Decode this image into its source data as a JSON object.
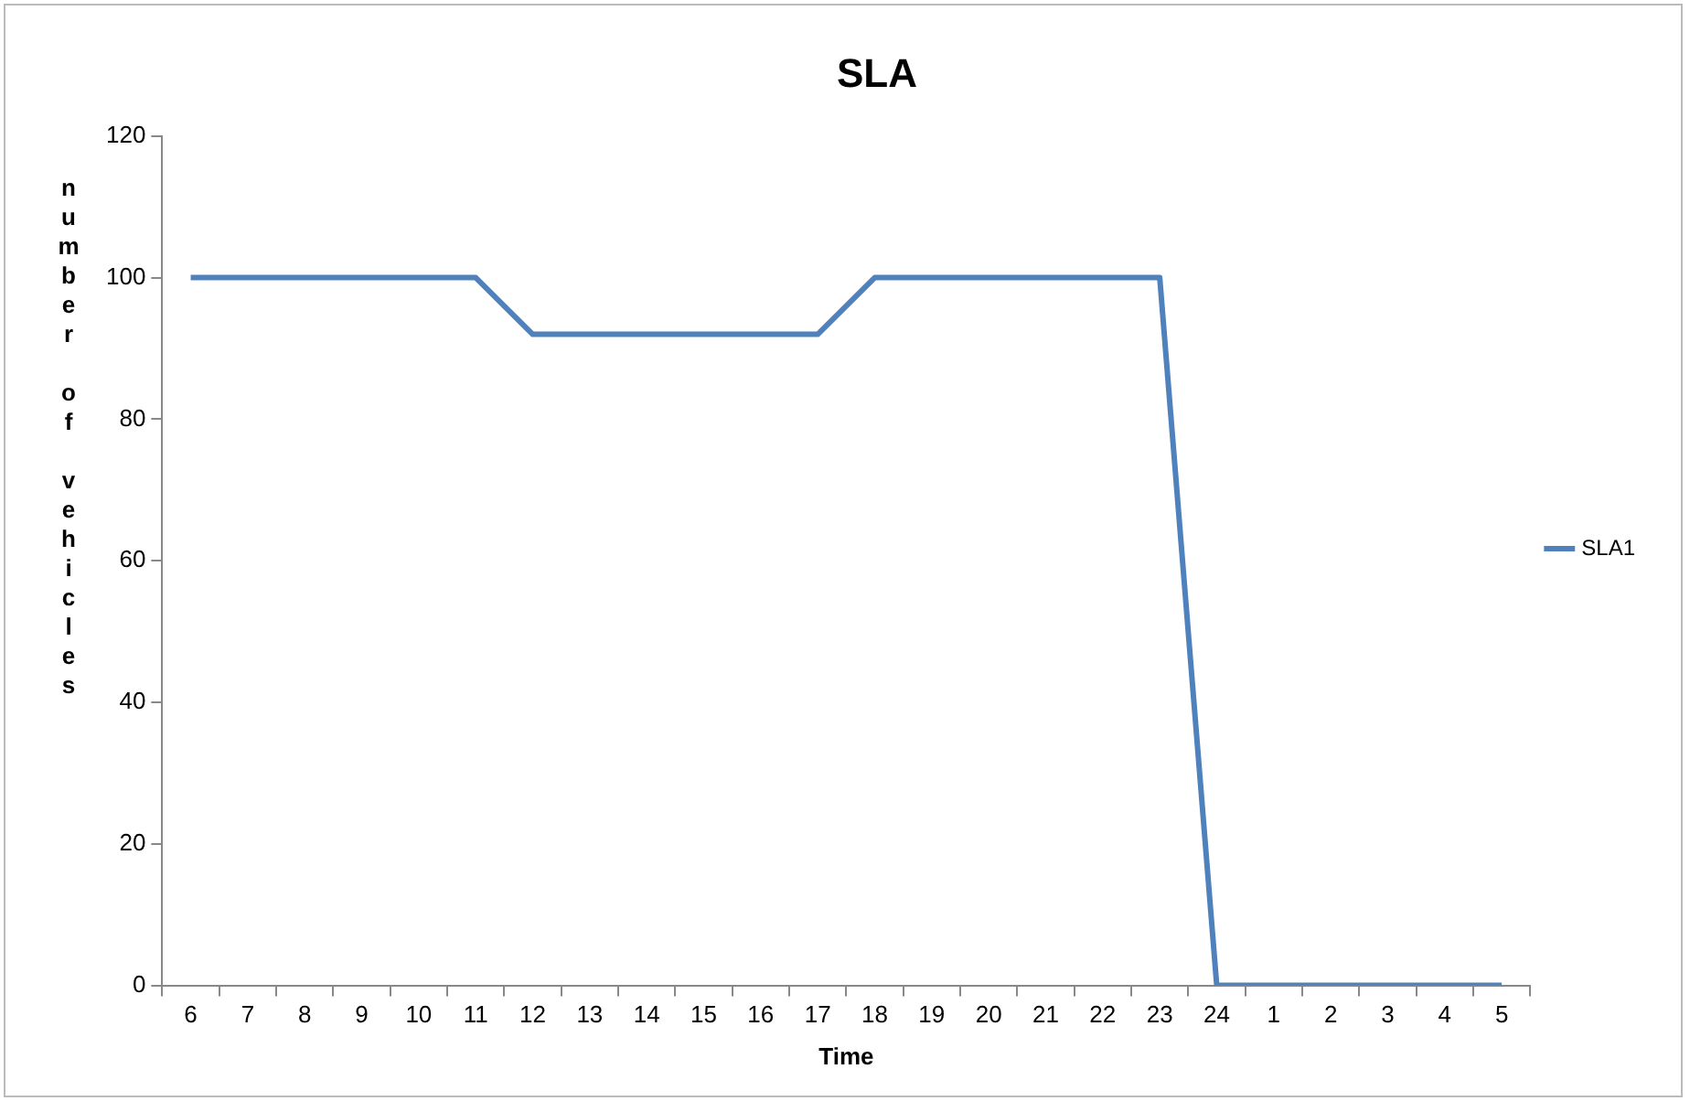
{
  "chart_data": {
    "type": "line",
    "title": "SLA",
    "xlabel": "Time",
    "ylabel": "number of vehicles",
    "categories": [
      "6",
      "7",
      "8",
      "9",
      "10",
      "11",
      "12",
      "13",
      "14",
      "15",
      "16",
      "17",
      "18",
      "19",
      "20",
      "21",
      "22",
      "23",
      "24",
      "1",
      "2",
      "3",
      "4",
      "5"
    ],
    "series": [
      {
        "name": "SLA1",
        "color": "#4f81bd",
        "values": [
          100,
          100,
          100,
          100,
          100,
          100,
          92,
          92,
          92,
          92,
          92,
          92,
          100,
          100,
          100,
          100,
          100,
          100,
          0,
          0,
          0,
          0,
          0,
          0
        ]
      }
    ],
    "ylim": [
      0,
      120
    ],
    "yticks": [
      0,
      20,
      40,
      60,
      80,
      100,
      120
    ],
    "grid": false,
    "legend": "right",
    "marker": "none",
    "line_style": "solid"
  }
}
